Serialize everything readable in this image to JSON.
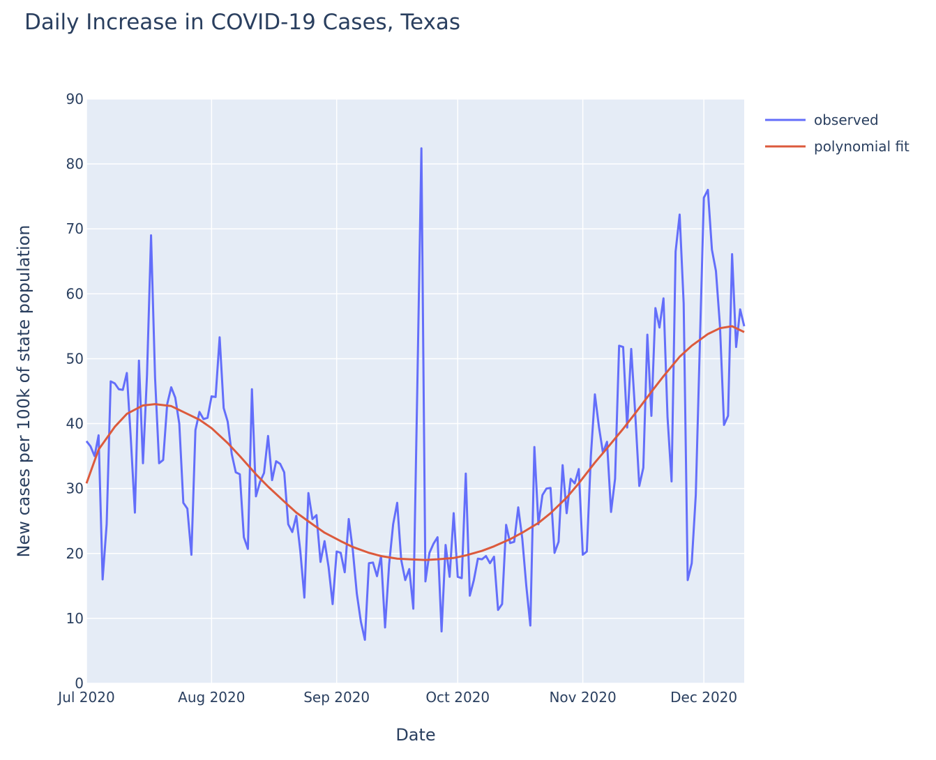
{
  "chart_data": {
    "type": "line",
    "title": "Daily Increase in COVID-19 Cases, Texas",
    "x_label": "Date",
    "y_label": "New cases per 100k of state population",
    "xlim": [
      "2020-07-01",
      "2020-12-11"
    ],
    "xticks": [
      {
        "value": "2020-07-01",
        "label": "Jul 2020"
      },
      {
        "value": "2020-08-01",
        "label": "Aug 2020"
      },
      {
        "value": "2020-09-01",
        "label": "Sep 2020"
      },
      {
        "value": "2020-10-01",
        "label": "Oct 2020"
      },
      {
        "value": "2020-11-01",
        "label": "Nov 2020"
      },
      {
        "value": "2020-12-01",
        "label": "Dec 2020"
      }
    ],
    "ylim": [
      0,
      90
    ],
    "yticks": [
      0,
      10,
      20,
      30,
      40,
      50,
      60,
      70,
      80,
      90
    ],
    "grid": true,
    "series": [
      {
        "name": "observed",
        "color": "#636efa",
        "x": [
          "2020-07-01",
          "2020-07-02",
          "2020-07-03",
          "2020-07-04",
          "2020-07-05",
          "2020-07-06",
          "2020-07-07",
          "2020-07-08",
          "2020-07-09",
          "2020-07-10",
          "2020-07-11",
          "2020-07-12",
          "2020-07-13",
          "2020-07-14",
          "2020-07-15",
          "2020-07-16",
          "2020-07-17",
          "2020-07-18",
          "2020-07-19",
          "2020-07-20",
          "2020-07-21",
          "2020-07-22",
          "2020-07-23",
          "2020-07-24",
          "2020-07-25",
          "2020-07-26",
          "2020-07-27",
          "2020-07-28",
          "2020-07-29",
          "2020-07-30",
          "2020-07-31",
          "2020-08-01",
          "2020-08-02",
          "2020-08-03",
          "2020-08-04",
          "2020-08-05",
          "2020-08-06",
          "2020-08-07",
          "2020-08-08",
          "2020-08-09",
          "2020-08-10",
          "2020-08-11",
          "2020-08-12",
          "2020-08-13",
          "2020-08-14",
          "2020-08-15",
          "2020-08-16",
          "2020-08-17",
          "2020-08-18",
          "2020-08-19",
          "2020-08-20",
          "2020-08-21",
          "2020-08-22",
          "2020-08-23",
          "2020-08-24",
          "2020-08-25",
          "2020-08-26",
          "2020-08-27",
          "2020-08-28",
          "2020-08-29",
          "2020-08-30",
          "2020-08-31",
          "2020-09-01",
          "2020-09-02",
          "2020-09-03",
          "2020-09-04",
          "2020-09-05",
          "2020-09-06",
          "2020-09-07",
          "2020-09-08",
          "2020-09-09",
          "2020-09-10",
          "2020-09-11",
          "2020-09-12",
          "2020-09-13",
          "2020-09-14",
          "2020-09-15",
          "2020-09-16",
          "2020-09-17",
          "2020-09-18",
          "2020-09-19",
          "2020-09-20",
          "2020-09-21",
          "2020-09-22",
          "2020-09-23",
          "2020-09-24",
          "2020-09-25",
          "2020-09-26",
          "2020-09-27",
          "2020-09-28",
          "2020-09-29",
          "2020-09-30",
          "2020-10-01",
          "2020-10-02",
          "2020-10-03",
          "2020-10-04",
          "2020-10-05",
          "2020-10-06",
          "2020-10-07",
          "2020-10-08",
          "2020-10-09",
          "2020-10-10",
          "2020-10-11",
          "2020-10-12",
          "2020-10-13",
          "2020-10-14",
          "2020-10-15",
          "2020-10-16",
          "2020-10-17",
          "2020-10-18",
          "2020-10-19",
          "2020-10-20",
          "2020-10-21",
          "2020-10-22",
          "2020-10-23",
          "2020-10-24",
          "2020-10-25",
          "2020-10-26",
          "2020-10-27",
          "2020-10-28",
          "2020-10-29",
          "2020-10-30",
          "2020-10-31",
          "2020-11-01",
          "2020-11-02",
          "2020-11-03",
          "2020-11-04",
          "2020-11-05",
          "2020-11-06",
          "2020-11-07",
          "2020-11-08",
          "2020-11-09",
          "2020-11-10",
          "2020-11-11",
          "2020-11-12",
          "2020-11-13",
          "2020-11-14",
          "2020-11-15",
          "2020-11-16",
          "2020-11-17",
          "2020-11-18",
          "2020-11-19",
          "2020-11-20",
          "2020-11-21",
          "2020-11-22",
          "2020-11-23",
          "2020-11-24",
          "2020-11-25",
          "2020-11-26",
          "2020-11-27",
          "2020-11-28",
          "2020-11-29",
          "2020-11-30",
          "2020-12-01",
          "2020-12-02",
          "2020-12-03",
          "2020-12-04",
          "2020-12-05",
          "2020-12-06",
          "2020-12-07",
          "2020-12-08",
          "2020-12-09",
          "2020-12-10",
          "2020-12-11"
        ],
        "values": [
          37.3,
          36.5,
          35,
          38.2,
          16,
          24.5,
          46.5,
          46.2,
          45.3,
          45.2,
          47.8,
          37.5,
          26.3,
          49.7,
          33.9,
          47.5,
          69,
          47,
          33.9,
          34.4,
          43,
          45.6,
          44,
          40,
          27.8,
          26.9,
          19.8,
          39,
          41.8,
          40.7,
          40.9,
          44.2,
          44.1,
          53.3,
          42.4,
          40.3,
          35.3,
          32.5,
          32.2,
          22.5,
          20.7,
          45.3,
          28.8,
          31,
          32.4,
          38.1,
          31.3,
          34.2,
          33.8,
          32.5,
          24.5,
          23.3,
          25.8,
          20.3,
          13.2,
          29.3,
          25.3,
          25.9,
          18.7,
          21.9,
          17.9,
          12.2,
          20.3,
          20.1,
          17.1,
          25.3,
          20.5,
          13.8,
          9.5,
          6.7,
          18.5,
          18.6,
          16.5,
          19.6,
          8.6,
          18.3,
          24.5,
          27.8,
          19,
          15.9,
          17.6,
          11.5,
          46,
          82.4,
          15.7,
          20.1,
          21.5,
          22.5,
          8,
          21.3,
          16.4,
          26.2,
          16.4,
          16.2,
          32.3,
          13.5,
          15.9,
          19.2,
          19.1,
          19.6,
          18.5,
          19.5,
          11.3,
          12.2,
          24.4,
          21.6,
          21.8,
          27.1,
          22.3,
          15,
          8.9,
          36.4,
          24.5,
          29,
          30,
          30.1,
          20.1,
          21.8,
          33.6,
          26.2,
          31.5,
          30.8,
          33,
          19.8,
          20.3,
          35,
          44.5,
          39.5,
          35.5,
          37.2,
          26.4,
          31.5,
          52,
          51.8,
          39.4,
          51.5,
          41.5,
          30.4,
          33.2,
          53.7,
          41.2,
          57.8,
          54.8,
          59.3,
          41,
          31.1,
          66.5,
          72.2,
          58.5,
          15.9,
          18.5,
          29,
          52,
          74.8,
          76,
          66.8,
          63.5,
          55,
          39.8,
          41.2,
          66.1,
          51.8,
          57.6,
          55
        ]
      },
      {
        "name": "polynomial fit",
        "color": "#dc5a3c",
        "x": [
          "2020-07-01",
          "2020-07-04",
          "2020-07-08",
          "2020-07-11",
          "2020-07-15",
          "2020-07-18",
          "2020-07-22",
          "2020-07-25",
          "2020-07-29",
          "2020-08-01",
          "2020-08-05",
          "2020-08-08",
          "2020-08-12",
          "2020-08-15",
          "2020-08-19",
          "2020-08-22",
          "2020-08-26",
          "2020-08-29",
          "2020-09-02",
          "2020-09-05",
          "2020-09-09",
          "2020-09-12",
          "2020-09-16",
          "2020-09-19",
          "2020-09-23",
          "2020-09-26",
          "2020-09-30",
          "2020-10-03",
          "2020-10-07",
          "2020-10-10",
          "2020-10-14",
          "2020-10-17",
          "2020-10-21",
          "2020-10-24",
          "2020-10-28",
          "2020-10-31",
          "2020-11-04",
          "2020-11-07",
          "2020-11-11",
          "2020-11-14",
          "2020-11-18",
          "2020-11-21",
          "2020-11-25",
          "2020-11-28",
          "2020-12-02",
          "2020-12-05",
          "2020-12-08",
          "2020-12-11"
        ],
        "values": [
          30.8,
          36,
          39.5,
          41.5,
          42.8,
          43,
          42.7,
          41.8,
          40.6,
          39.3,
          37,
          35,
          32.2,
          30.3,
          28,
          26.3,
          24.5,
          23.2,
          21.9,
          21,
          20.1,
          19.6,
          19.2,
          19.1,
          19,
          19.1,
          19.3,
          19.7,
          20.4,
          21.1,
          22.2,
          23.2,
          24.7,
          26.2,
          28.6,
          30.8,
          34,
          36.2,
          39.2,
          41.6,
          44.9,
          47.3,
          50.3,
          52,
          53.8,
          54.7,
          55,
          54.1
        ]
      }
    ]
  }
}
